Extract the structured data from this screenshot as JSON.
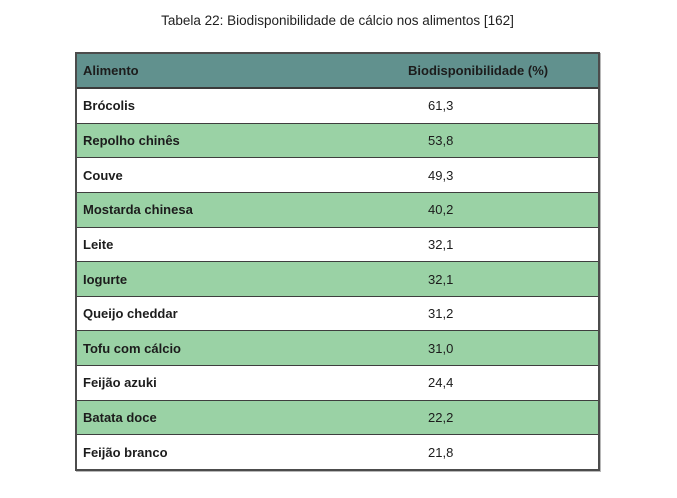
{
  "caption": "Tabela 22: Biodisponibilidade de cálcio nos alimentos [162]",
  "colors": {
    "header_bg": "#61918E",
    "row_alt_bg": "#9AD2A5",
    "row_bg": "#FFFFFF",
    "border": "#3E3E3E",
    "text": "#1C1C1C"
  },
  "table": {
    "columns": {
      "food": "Alimento",
      "value": "Biodisponibilidade (%)"
    },
    "rows": [
      {
        "alimento": "Brócolis",
        "valor": "61,3"
      },
      {
        "alimento": "Repolho chinês",
        "valor": "53,8"
      },
      {
        "alimento": "Couve",
        "valor": "49,3"
      },
      {
        "alimento": "Mostarda chinesa",
        "valor": "40,2"
      },
      {
        "alimento": "Leite",
        "valor": "32,1"
      },
      {
        "alimento": "Iogurte",
        "valor": "32,1"
      },
      {
        "alimento": "Queijo cheddar",
        "valor": "31,2"
      },
      {
        "alimento": "Tofu com cálcio",
        "valor": "31,0"
      },
      {
        "alimento": "Feijão azuki",
        "valor": "24,4"
      },
      {
        "alimento": "Batata doce",
        "valor": "22,2"
      },
      {
        "alimento": "Feijão branco",
        "valor": "21,8"
      }
    ]
  },
  "chart_data": {
    "type": "table",
    "title": "Tabela 22: Biodisponibilidade de cálcio nos alimentos [162]",
    "columns": [
      "Alimento",
      "Biodisponibilidade (%)"
    ],
    "categories": [
      "Brócolis",
      "Repolho chinês",
      "Couve",
      "Mostarda chinesa",
      "Leite",
      "Iogurte",
      "Queijo cheddar",
      "Tofu com cálcio",
      "Feijão azuki",
      "Batata doce",
      "Feijão branco"
    ],
    "values": [
      61.3,
      53.8,
      49.3,
      40.2,
      32.1,
      32.1,
      31.2,
      31.0,
      24.4,
      22.2,
      21.8
    ]
  }
}
